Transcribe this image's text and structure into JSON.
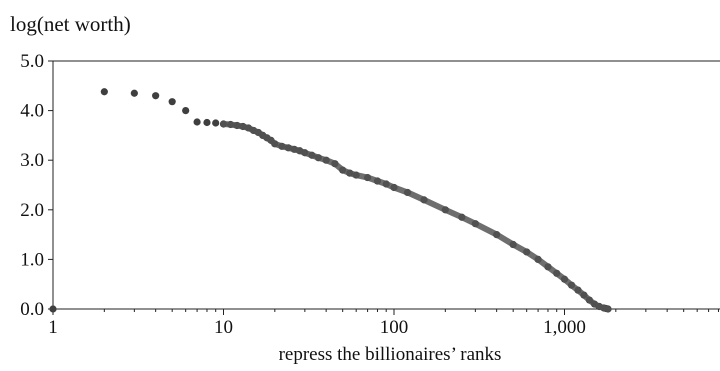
{
  "chart_data": {
    "type": "scatter",
    "title": "",
    "ylabel": "log(net worth)",
    "xlabel": "repress the billionaires’ ranks",
    "x_scale": "log",
    "xlim": [
      1,
      10000
    ],
    "ylim": [
      0,
      5
    ],
    "grid": false,
    "legend": "none",
    "x_ticks": [
      1,
      10,
      100,
      1000
    ],
    "x_tick_labels": [
      "1",
      "10",
      "100",
      "1,000"
    ],
    "y_ticks": [
      0,
      1,
      2,
      3,
      4,
      5
    ],
    "y_tick_labels": [
      "0.0",
      "1.0",
      "2.0",
      "3.0",
      "4.0",
      "5.0"
    ],
    "series": [
      {
        "marker_color": "#3f3f3f",
        "x": [
          1,
          2,
          3,
          4,
          5,
          6,
          7,
          8,
          9,
          10,
          11,
          12,
          13,
          14,
          15,
          16,
          17,
          18,
          19,
          20,
          22,
          24,
          26,
          28,
          30,
          33,
          36,
          40,
          45,
          50,
          55,
          60,
          70,
          80,
          90,
          100,
          120,
          150,
          200,
          250,
          300,
          400,
          500,
          600,
          700,
          800,
          900,
          1000,
          1100,
          1200,
          1300,
          1400,
          1500,
          1600,
          1700,
          1750,
          1800
        ],
        "y": [
          0.0,
          4.38,
          4.35,
          4.3,
          4.18,
          4.0,
          3.77,
          3.76,
          3.75,
          3.73,
          3.72,
          3.7,
          3.68,
          3.65,
          3.6,
          3.56,
          3.5,
          3.45,
          3.4,
          3.33,
          3.28,
          3.25,
          3.22,
          3.19,
          3.15,
          3.1,
          3.05,
          3.0,
          2.93,
          2.8,
          2.74,
          2.7,
          2.65,
          2.58,
          2.52,
          2.45,
          2.35,
          2.2,
          2.0,
          1.85,
          1.72,
          1.5,
          1.3,
          1.15,
          1.0,
          0.85,
          0.72,
          0.6,
          0.48,
          0.38,
          0.28,
          0.18,
          0.1,
          0.05,
          0.02,
          0.01,
          0.0
        ]
      }
    ]
  }
}
